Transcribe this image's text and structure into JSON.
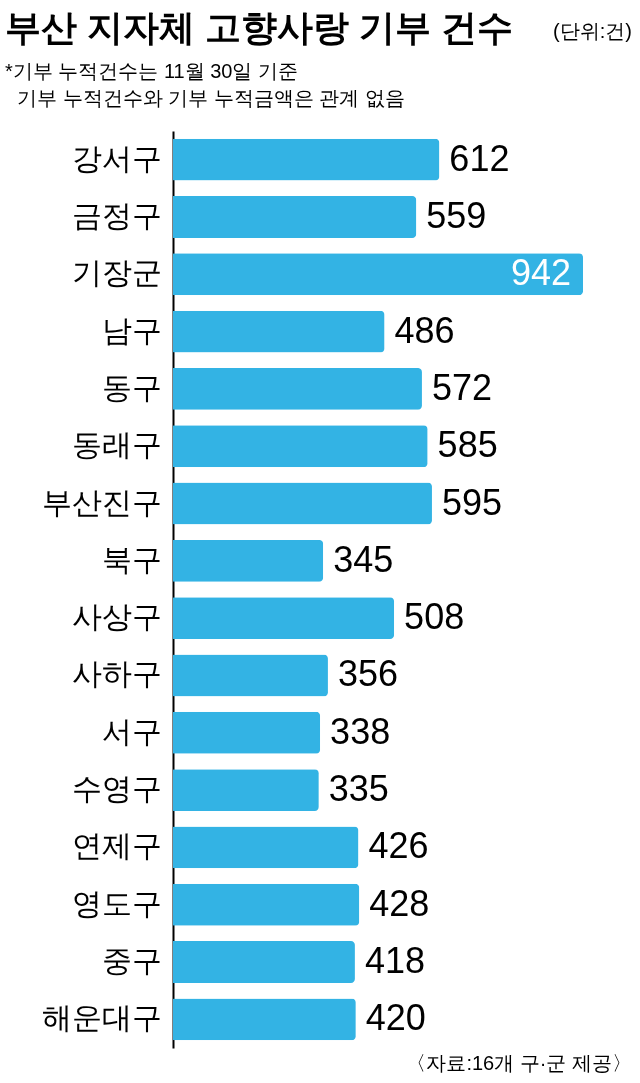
{
  "chart_data": {
    "type": "bar",
    "orientation": "horizontal",
    "title": "부산 지자체 고향사랑 기부 건수",
    "subtitle": "(단위:건)",
    "annotations": [
      "*기부 누적건수는 11월 30일 기준",
      "기부 누적건수와 기부 누적금액은 관계 없음",
      "〈자료:16개 구·군 제공〉"
    ],
    "categories": [
      "강서구",
      "금정구",
      "기장군",
      "남구",
      "동구",
      "동래구",
      "부산진구",
      "북구",
      "사상구",
      "사하구",
      "서구",
      "수영구",
      "연제구",
      "영도구",
      "중구",
      "해운대구"
    ],
    "values": [
      612,
      559,
      942,
      486,
      572,
      585,
      595,
      345,
      508,
      356,
      338,
      335,
      426,
      428,
      418,
      420
    ],
    "color": "#33b3e4",
    "data_labels": true
  }
}
